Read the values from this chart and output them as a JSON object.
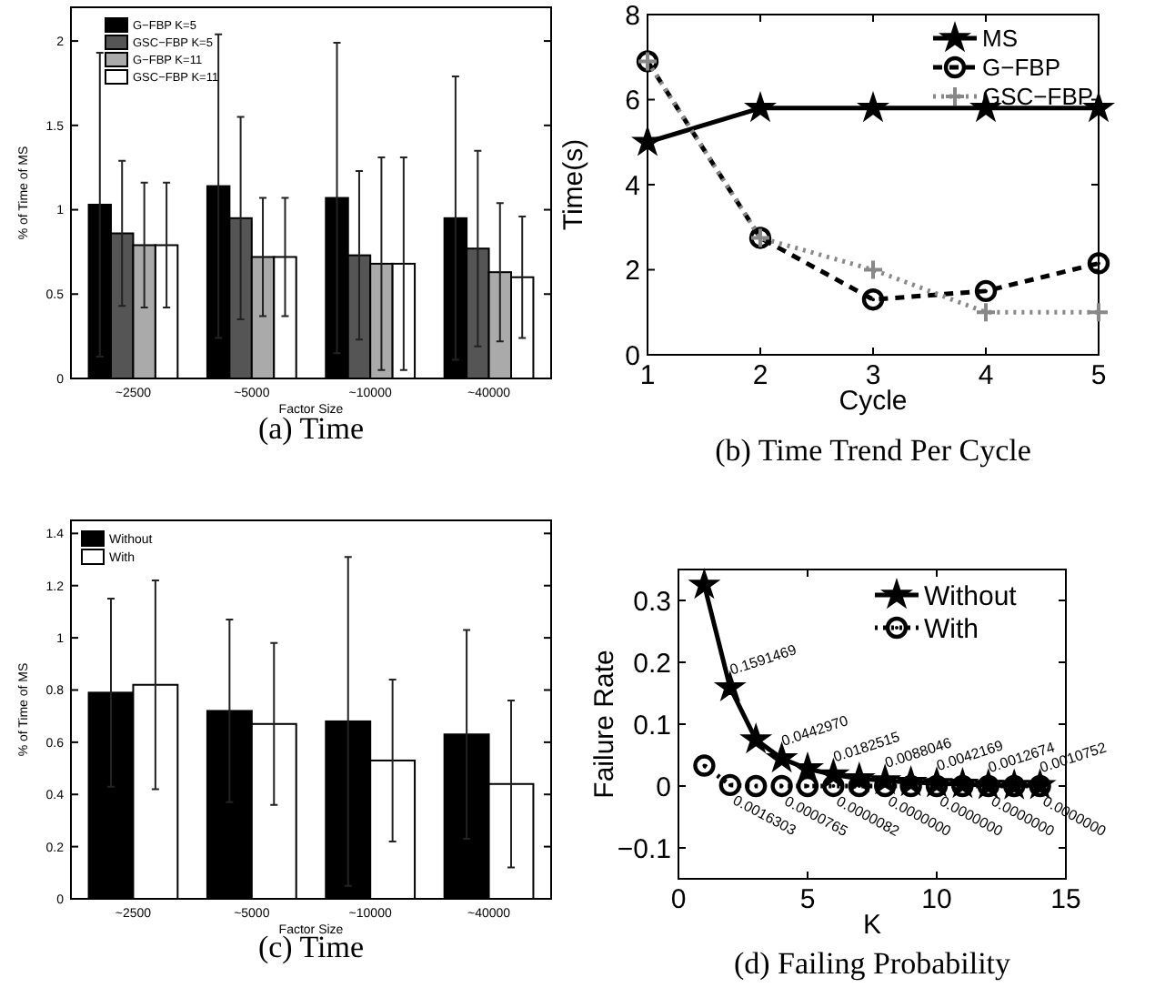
{
  "chart_data": [
    {
      "type": "bar",
      "title": "(a) Time",
      "xlabel": "Factor Size",
      "ylabel": "% of Time of MS",
      "categories": [
        "~2500",
        "~5000",
        "~10000",
        "~40000"
      ],
      "ylim": [
        0,
        2.2
      ],
      "yticks": [
        0,
        0.5,
        1,
        1.5,
        2
      ],
      "legend": "top left",
      "grid": false,
      "series": [
        {
          "name": "G−FBP K=5",
          "color": "#000000",
          "values": [
            1.03,
            1.14,
            1.07,
            0.95
          ],
          "errors": [
            0.9,
            0.9,
            0.92,
            0.84
          ]
        },
        {
          "name": "GSC−FBP K=5",
          "color": "#555555",
          "values": [
            0.86,
            0.95,
            0.73,
            0.77
          ],
          "errors": [
            0.43,
            0.6,
            0.5,
            0.58
          ]
        },
        {
          "name": "G−FBP K=11",
          "color": "#aaaaaa",
          "values": [
            0.79,
            0.72,
            0.68,
            0.63
          ],
          "errors": [
            0.37,
            0.35,
            0.63,
            0.41
          ]
        },
        {
          "name": "GSC−FBP K=11",
          "color": "#ffffff",
          "values": [
            0.79,
            0.72,
            0.68,
            0.6
          ],
          "errors": [
            0.37,
            0.35,
            0.63,
            0.36
          ]
        }
      ]
    },
    {
      "type": "line",
      "title": "(b) Time Trend Per Cycle",
      "xlabel": "Cycle",
      "ylabel": "Time(s)",
      "x": [
        1,
        2,
        3,
        4,
        5
      ],
      "xlim": [
        1,
        5
      ],
      "xticks": [
        1,
        2,
        3,
        4,
        5
      ],
      "ylim": [
        0,
        8
      ],
      "yticks": [
        0,
        2,
        4,
        6,
        8
      ],
      "legend": "top right",
      "grid": false,
      "series": [
        {
          "name": "MS",
          "color": "#000000",
          "marker": "star",
          "line_style": "solid",
          "values": [
            5,
            5.8,
            5.8,
            5.8,
            5.8
          ]
        },
        {
          "name": "G−FBP",
          "color": "#000000",
          "marker": "circle",
          "line_style": "dashed",
          "values": [
            6.9,
            2.75,
            1.3,
            1.5,
            2.15
          ]
        },
        {
          "name": "GSC−FBP",
          "color": "#888888",
          "marker": "cross",
          "line_style": "dotted",
          "values": [
            6.9,
            2.75,
            2.0,
            1.0,
            1.0
          ]
        }
      ]
    },
    {
      "type": "bar",
      "title": "(c) Time",
      "xlabel": "Factor Size",
      "ylabel": "% of Time of MS",
      "categories": [
        "~2500",
        "~5000",
        "~10000",
        "~40000"
      ],
      "ylim": [
        0,
        1.45
      ],
      "yticks": [
        0,
        0.2,
        0.4,
        0.6,
        0.8,
        1,
        1.2,
        1.4
      ],
      "legend": "top left",
      "grid": false,
      "series": [
        {
          "name": "Without",
          "color": "#000000",
          "values": [
            0.79,
            0.72,
            0.68,
            0.63
          ],
          "errors": [
            0.36,
            0.35,
            0.63,
            0.4
          ]
        },
        {
          "name": "With",
          "color": "#ffffff",
          "values": [
            0.82,
            0.67,
            0.53,
            0.44
          ],
          "errors": [
            0.4,
            0.31,
            0.31,
            0.32
          ]
        }
      ]
    },
    {
      "type": "line",
      "title": "(d) Failing Probability",
      "xlabel": "K",
      "ylabel": "Failure Rate",
      "x": [
        1,
        2,
        3,
        4,
        5,
        6,
        7,
        8,
        9,
        10,
        11,
        12,
        13,
        14
      ],
      "xlim": [
        0,
        15
      ],
      "xticks": [
        0,
        5,
        10,
        15
      ],
      "ylim": [
        -0.15,
        0.35
      ],
      "yticks": [
        {
          "value": -0.1,
          "label": "−0.1"
        },
        0,
        0.1,
        0.2,
        0.3
      ],
      "legend": "top right",
      "grid": false,
      "series": [
        {
          "name": "Without",
          "color": "#000000",
          "marker": "star",
          "line_style": "solid",
          "values": [
            0.325,
            0.1591469,
            0.075,
            0.044297,
            0.028,
            0.0182515,
            0.012,
            0.0088046,
            0.006,
            0.0042169,
            0.003,
            0.0012674,
            0.001,
            0.0010752
          ],
          "value_labels": [
            null,
            "0.1591469",
            null,
            "0.0442970",
            null,
            "0.0182515",
            null,
            "0.0088046",
            null,
            "0.0042169",
            null,
            "0.0012674",
            null,
            "0.0010752"
          ]
        },
        {
          "name": "With",
          "color": "#000000",
          "marker": "circle",
          "line_style": "dotted",
          "values": [
            0.033,
            0.0016303,
            0,
            7.65e-05,
            0,
            8.2e-06,
            0,
            0,
            0,
            0,
            0,
            0,
            0,
            0
          ],
          "value_labels": [
            null,
            "0.0016303",
            null,
            "0.0000765",
            null,
            "0.0000082",
            null,
            "0.0000000",
            null,
            "0.0000000",
            null,
            "0.0000000",
            null,
            "0.0000000"
          ]
        }
      ]
    }
  ]
}
